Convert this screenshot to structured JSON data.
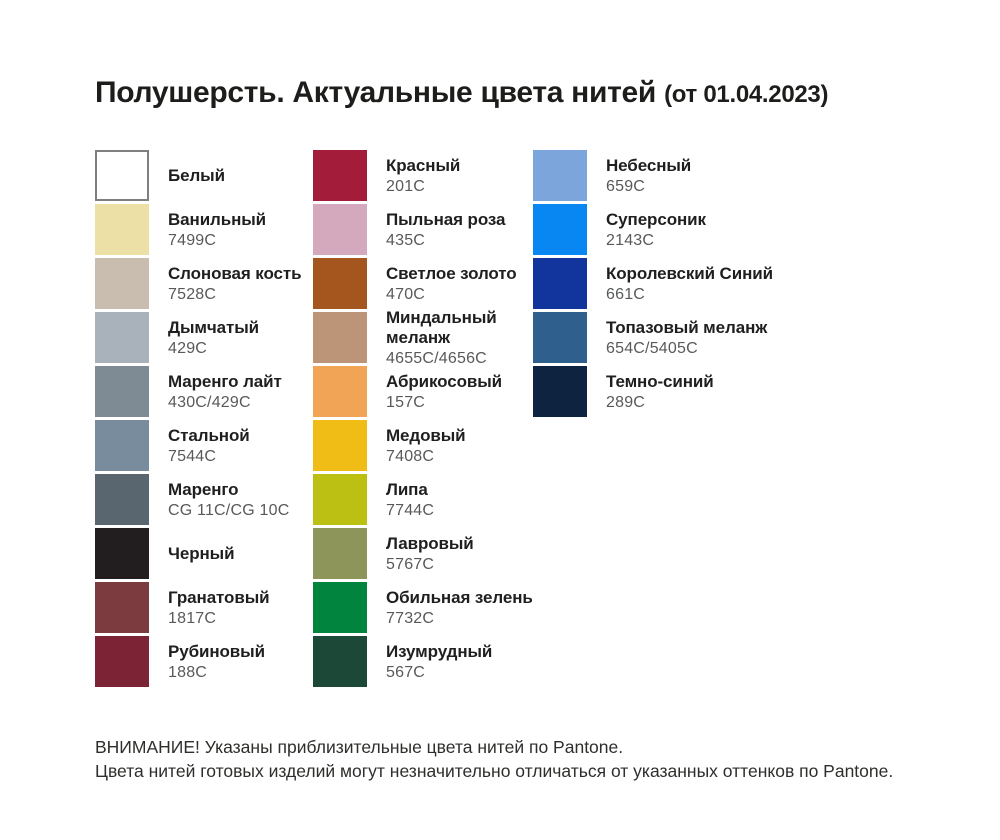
{
  "title": {
    "main": "Полушерсть. Актуальные цвета нитей",
    "suffix": "(от 01.04.2023)"
  },
  "columns": [
    {
      "items": [
        {
          "name": "Белый",
          "code": "",
          "color": "#FFFFFF",
          "bordered": true
        },
        {
          "name": "Ванильный",
          "code": "7499C",
          "color": "#ECE0A6"
        },
        {
          "name": "Слоновая кость",
          "code": "7528C",
          "color": "#C8BDAE"
        },
        {
          "name": "Дымчатый",
          "code": "429C",
          "color": "#A9B1BA"
        },
        {
          "name": "Маренго лайт",
          "code": "430C/429C",
          "color": "#7E8B94"
        },
        {
          "name": "Стальной",
          "code": "7544C",
          "color": "#788C9E"
        },
        {
          "name": "Маренго",
          "code": "CG 11C/CG 10C",
          "color": "#59656F"
        },
        {
          "name": "Черный",
          "code": "",
          "color": "#221E1F"
        },
        {
          "name": "Гранатовый",
          "code": "1817C",
          "color": "#7C3C3F"
        },
        {
          "name": "Рубиновый",
          "code": "188C",
          "color": "#7C2336"
        }
      ]
    },
    {
      "items": [
        {
          "name": "Красный",
          "code": "201C",
          "color": "#A31D3A"
        },
        {
          "name": "Пыльная роза",
          "code": "435C",
          "color": "#D4A9BD"
        },
        {
          "name": "Светлое золото",
          "code": "470C",
          "color": "#A5561E"
        },
        {
          "name": "Миндальный меланж",
          "code": "4655C/4656C",
          "color": "#BC9478"
        },
        {
          "name": "Абрикосовый",
          "code": "157C",
          "color": "#F1A356"
        },
        {
          "name": "Медовый",
          "code": "7408C",
          "color": "#F0BD16"
        },
        {
          "name": "Липа",
          "code": "7744C",
          "color": "#BBC013"
        },
        {
          "name": "Лавровый",
          "code": "5767C",
          "color": "#8E955B"
        },
        {
          "name": "Обильная зелень",
          "code": "7732C",
          "color": "#00843E"
        },
        {
          "name": "Изумрудный",
          "code": "567C",
          "color": "#1C4838"
        }
      ]
    },
    {
      "items": [
        {
          "name": "Небесный",
          "code": "659C",
          "color": "#7BA5DB"
        },
        {
          "name": "Суперсоник",
          "code": "2143C",
          "color": "#0886F2"
        },
        {
          "name": "Королевский Синий",
          "code": "661C",
          "color": "#11349D"
        },
        {
          "name": "Топазовый меланж",
          "code": "654C/5405C",
          "color": "#2F5F8D"
        },
        {
          "name": "Темно-синий",
          "code": "289C",
          "color": "#0D2340"
        }
      ]
    }
  ],
  "footer": {
    "line1": "ВНИМАНИЕ! Указаны приблизительные цвета нитей по Pantone.",
    "line2": "Цвета нитей готовых изделий могут незначительно отличаться от указанных оттенков по Pantone."
  }
}
